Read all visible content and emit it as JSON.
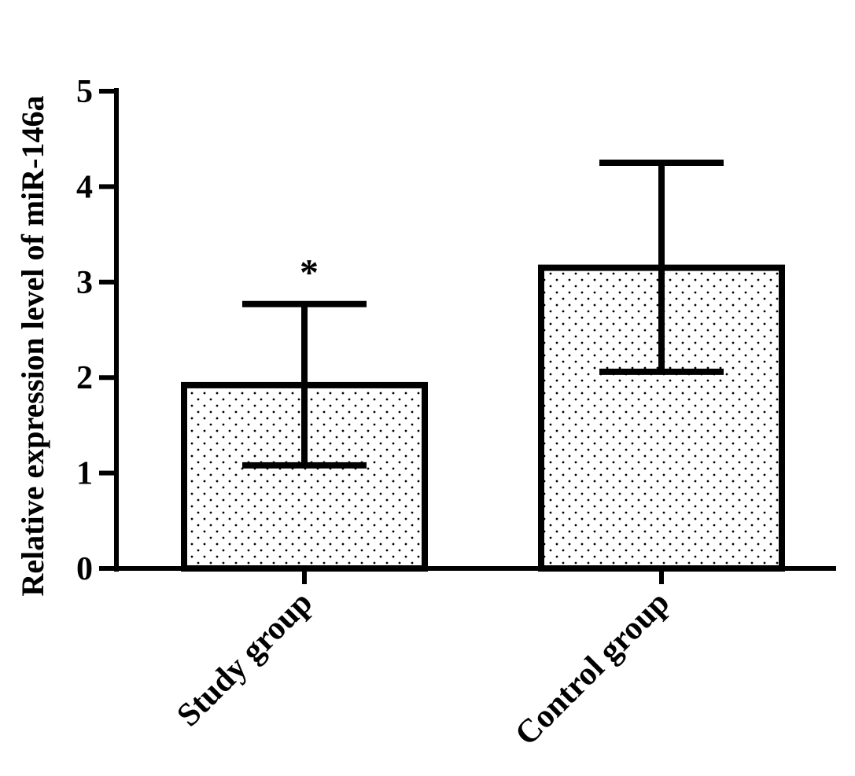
{
  "chart_data": {
    "type": "bar",
    "categories": [
      "Study group",
      "Control group"
    ],
    "values": [
      1.92,
      3.15
    ],
    "error_upper": [
      2.77,
      4.25
    ],
    "error_lower": [
      1.08,
      2.06
    ],
    "annotations": [
      "*",
      ""
    ],
    "ylabel": "Relative expression level of miR-146a",
    "xlabel": "",
    "ylim": [
      0,
      5
    ],
    "yticks": [
      "0",
      "1",
      "2",
      "3",
      "4",
      "5"
    ],
    "grid": false,
    "bar_fill": "dotted pattern",
    "colors": {
      "axis": "#000000",
      "bar_border": "#000000",
      "bar_fill": "#ffffff",
      "dots": "#000000"
    }
  }
}
